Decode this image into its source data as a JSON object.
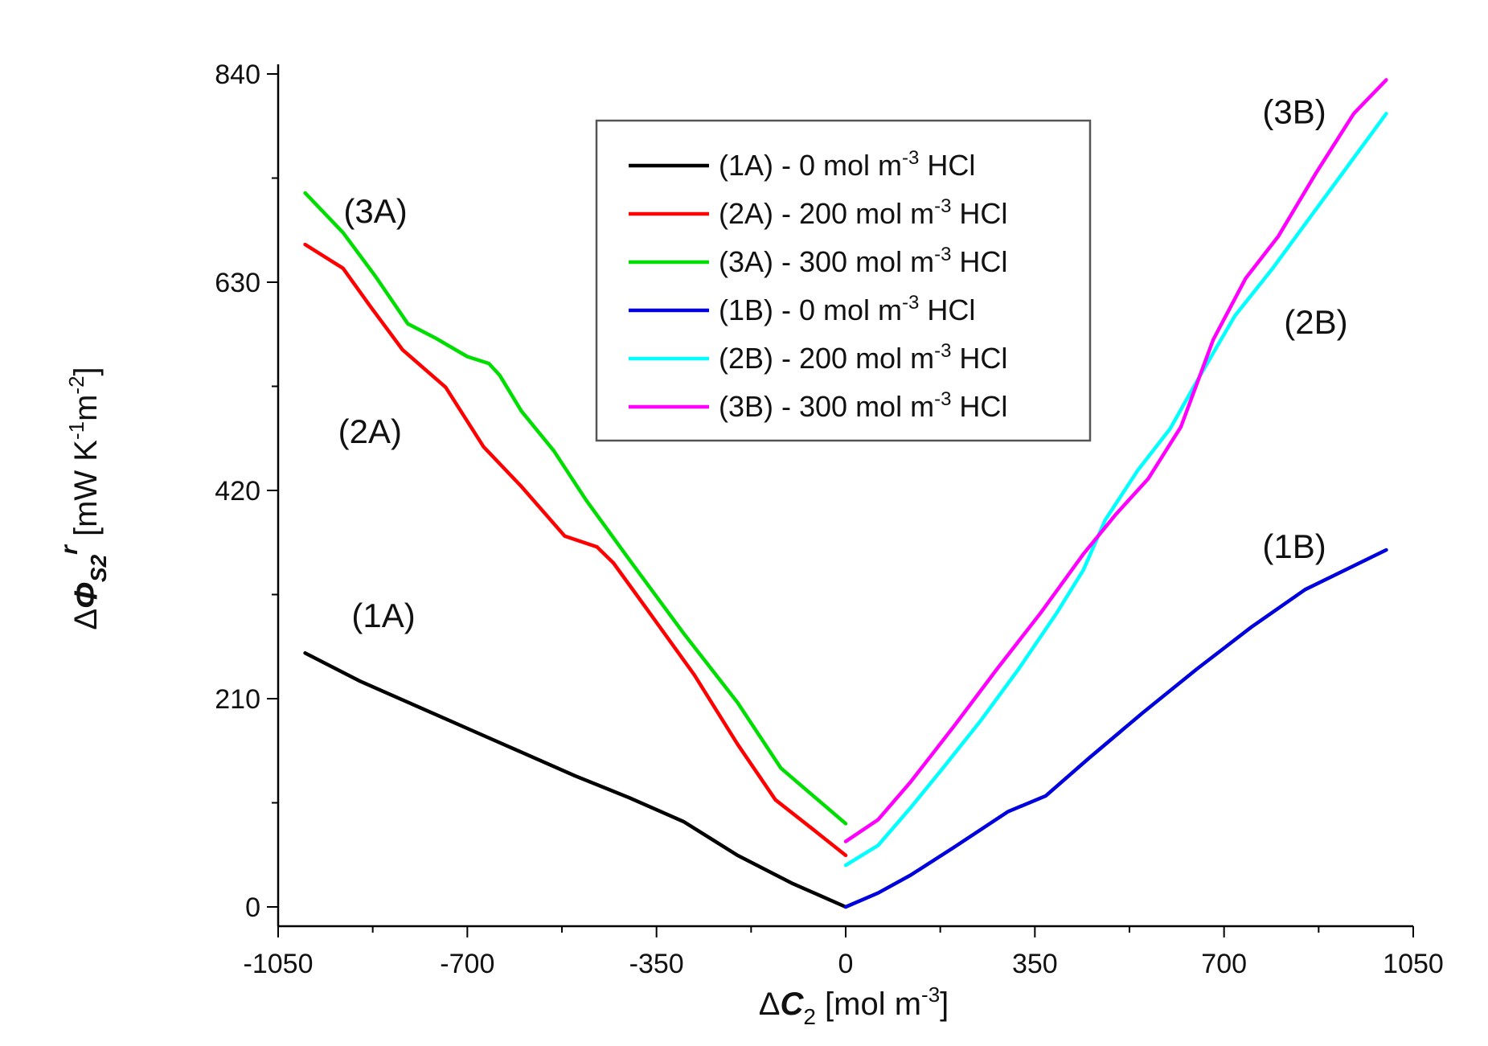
{
  "chart_data": {
    "type": "line",
    "xlabel": {
      "prefix": "Δ",
      "symbol": "C",
      "subscript": "2",
      "unit": " [mol m",
      "unit_sup": "-3",
      "close": "]"
    },
    "ylabel": {
      "prefix": "Δ",
      "symbol": "Φ",
      "subscript": "S2",
      "superscript": "r",
      "unit": " [mW K",
      "sup1": "-1",
      "mid": "m",
      "sup2": "-2",
      "close": "]"
    },
    "xlim": [
      -1050,
      1050
    ],
    "ylim": [
      0,
      840
    ],
    "x_ticks": [
      -1050,
      -700,
      -350,
      0,
      350,
      700,
      1050
    ],
    "x_tick_labels": [
      "-1050",
      "-700",
      "-350",
      "0",
      "350",
      "700",
      "1050"
    ],
    "y_ticks": [
      0,
      210,
      420,
      630,
      840
    ],
    "y_tick_labels": [
      "0",
      "210",
      "420",
      "630",
      "840"
    ],
    "series": [
      {
        "name": "(1A) - 0 mol m-3 HCl",
        "legend_parts": [
          "(1A) - 0 mol m",
          "-3",
          " HCl"
        ],
        "color": "#000000",
        "x": [
          -1000,
          -900,
          -800,
          -700,
          -600,
          -500,
          -400,
          -300,
          -200,
          -100,
          0
        ],
        "y": [
          256,
          228,
          204,
          180,
          156,
          132,
          110,
          86,
          52,
          24,
          0
        ]
      },
      {
        "name": "(2A) - 200 mol m-3 HCl",
        "legend_parts": [
          "(2A) - 200 mol m",
          "-3",
          " HCl"
        ],
        "color": "#ff0000",
        "x": [
          -1000,
          -930,
          -880,
          -820,
          -740,
          -670,
          -600,
          -520,
          -460,
          -430,
          -370,
          -280,
          -200,
          -130,
          -60,
          0
        ],
        "y": [
          668,
          644,
          606,
          562,
          524,
          464,
          424,
          374,
          363,
          347,
          302,
          234,
          164,
          108,
          78,
          52
        ]
      },
      {
        "name": "(3A) - 300 mol m-3 HCl",
        "legend_parts": [
          "(3A) - 300 mol m",
          "-3",
          " HCl"
        ],
        "color": "#00dd00",
        "x": [
          -1000,
          -930,
          -870,
          -810,
          -760,
          -700,
          -660,
          -640,
          -600,
          -540,
          -480,
          -400,
          -300,
          -200,
          -120,
          -60,
          0
        ],
        "y": [
          720,
          680,
          636,
          588,
          574,
          555,
          548,
          536,
          500,
          460,
          410,
          350,
          276,
          206,
          140,
          112,
          84
        ]
      },
      {
        "name": "(1B) - 0 mol m-3 HCl",
        "legend_parts": [
          "(1B) - 0 mol m",
          "-3",
          " HCl"
        ],
        "color": "#0000dd",
        "x": [
          0,
          60,
          120,
          200,
          300,
          370,
          450,
          550,
          650,
          750,
          850,
          1000
        ],
        "y": [
          0,
          14,
          32,
          60,
          96,
          112,
          150,
          196,
          240,
          282,
          320,
          360
        ]
      },
      {
        "name": "(2B) - 200 mol m-3 HCl",
        "legend_parts": [
          "(2B) - 200 mol m",
          "-3",
          " HCl"
        ],
        "color": "#00ffff",
        "x": [
          0,
          60,
          120,
          180,
          250,
          320,
          390,
          440,
          480,
          540,
          600,
          660,
          720,
          790,
          860,
          930,
          1000
        ],
        "y": [
          42,
          62,
          100,
          140,
          188,
          240,
          296,
          340,
          390,
          440,
          482,
          540,
          596,
          644,
          696,
          748,
          800
        ]
      },
      {
        "name": "(3B) - 300 mol m-3 HCl",
        "legend_parts": [
          "(3B) - 300 mol m",
          "-3",
          " HCl"
        ],
        "color": "#ff00ff",
        "x": [
          0,
          60,
          120,
          200,
          280,
          360,
          440,
          500,
          560,
          620,
          680,
          740,
          800,
          870,
          940,
          1000
        ],
        "y": [
          66,
          88,
          126,
          182,
          240,
          296,
          356,
          396,
          432,
          484,
          572,
          634,
          676,
          740,
          800,
          834
        ]
      }
    ],
    "annotations": [
      {
        "text": "(3A)",
        "x": -870,
        "y": 690
      },
      {
        "text": "(2A)",
        "x": -880,
        "y": 468
      },
      {
        "text": "(1A)",
        "x": -855,
        "y": 282
      },
      {
        "text": "(3B)",
        "x": 830,
        "y": 790
      },
      {
        "text": "(2B)",
        "x": 870,
        "y": 578
      },
      {
        "text": "(1B)",
        "x": 830,
        "y": 352
      }
    ],
    "legend_position": "top-center",
    "grid": false
  }
}
